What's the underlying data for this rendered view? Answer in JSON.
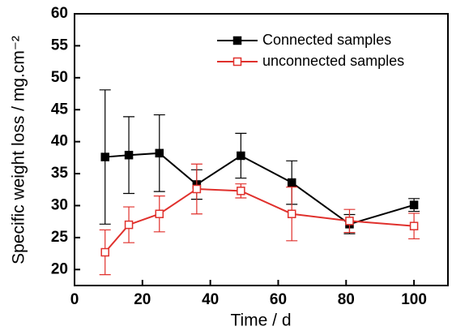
{
  "chart_data": {
    "type": "line",
    "xlabel": "Time / d",
    "ylabel": "Specific weight loss / mg.cm⁻²",
    "x": [
      9,
      16,
      25,
      36,
      49,
      64,
      81,
      100
    ],
    "series": [
      {
        "name": "Connected samples",
        "color": "#000000",
        "marker_fill": "filled",
        "values": [
          37.6,
          37.9,
          38.2,
          33.3,
          37.8,
          33.6,
          27.1,
          30.1
        ],
        "errors": [
          10.5,
          6,
          6,
          2.3,
          3.5,
          3.4,
          1.5,
          1
        ]
      },
      {
        "name": "unconnected samples",
        "color": "#e0302c",
        "marker_fill": "open",
        "values": [
          22.7,
          27,
          28.7,
          32.6,
          32.3,
          28.7,
          27.6,
          26.8
        ],
        "errors": [
          3.5,
          2.8,
          2.8,
          3.9,
          1.1,
          4.2,
          1.8,
          2
        ]
      }
    ],
    "xlim": [
      0,
      110
    ],
    "xticks": [
      0,
      20,
      40,
      60,
      80,
      100
    ],
    "ylim": [
      17.5,
      60
    ],
    "yticks": [
      20,
      25,
      30,
      35,
      40,
      45,
      50,
      55,
      60
    ],
    "legend": "upper right"
  }
}
